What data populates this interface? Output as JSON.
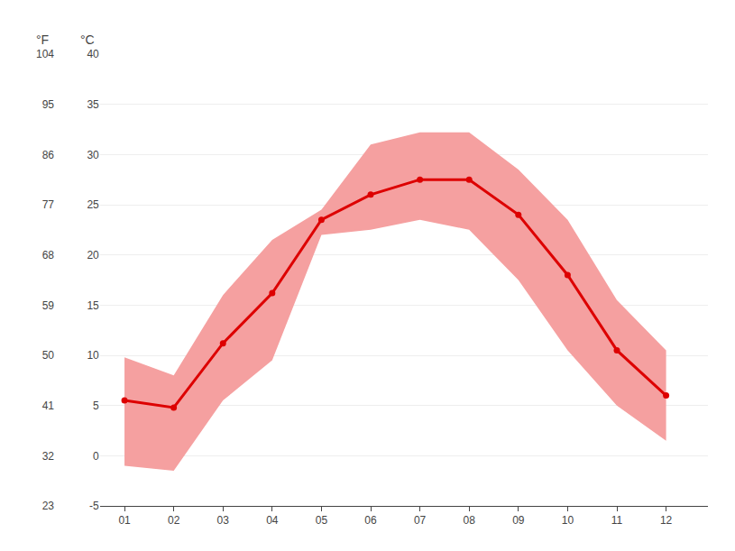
{
  "chart_data": {
    "type": "line",
    "x": [
      1,
      2,
      3,
      4,
      5,
      6,
      7,
      8,
      9,
      10,
      11,
      12
    ],
    "xlim": [
      0.5,
      12.85
    ],
    "xticks": [
      {
        "value": 1,
        "label": "01"
      },
      {
        "value": 2,
        "label": "02"
      },
      {
        "value": 3,
        "label": "03"
      },
      {
        "value": 4,
        "label": "04"
      },
      {
        "value": 5,
        "label": "05"
      },
      {
        "value": 6,
        "label": "06"
      },
      {
        "value": 7,
        "label": "07"
      },
      {
        "value": 8,
        "label": "08"
      },
      {
        "value": 9,
        "label": "09"
      },
      {
        "value": 10,
        "label": "10"
      },
      {
        "value": 11,
        "label": "11"
      },
      {
        "value": 12,
        "label": "12"
      }
    ],
    "ylabel": "°C",
    "ylim": [
      -5,
      40
    ],
    "yticks": [
      -5,
      0,
      5,
      10,
      15,
      20,
      25,
      30,
      35,
      40
    ],
    "y2label": "°F",
    "y2lim": [
      23,
      104
    ],
    "y2ticks": [
      23,
      32,
      41,
      50,
      59,
      68,
      77,
      86,
      95,
      104
    ],
    "grid": true,
    "series": [
      {
        "type": "band",
        "color": "#f5a0a0",
        "low": [
          -1.0,
          -1.5,
          5.5,
          9.5,
          22.0,
          22.5,
          23.5,
          22.5,
          17.5,
          10.5,
          5.0,
          1.5
        ],
        "high": [
          9.8,
          8.0,
          16.0,
          21.5,
          24.5,
          31.0,
          32.2,
          32.2,
          28.5,
          23.5,
          15.5,
          10.5
        ]
      },
      {
        "type": "line",
        "color": "#dd0000",
        "marker": "circle",
        "values": [
          5.5,
          4.8,
          11.2,
          16.2,
          23.5,
          26.0,
          27.5,
          27.5,
          24.0,
          18.0,
          10.5,
          6.0
        ]
      }
    ]
  }
}
